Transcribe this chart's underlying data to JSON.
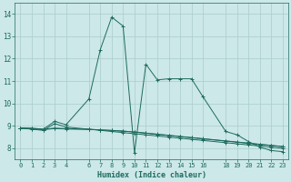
{
  "xlabel": "Humidex (Indice chaleur)",
  "background_color": "#cce8e8",
  "grid_color": "#aacccc",
  "line_color": "#1e6b5e",
  "xlim": [
    -0.5,
    23.5
  ],
  "ylim": [
    7.5,
    14.5
  ],
  "xticks": [
    0,
    1,
    2,
    3,
    4,
    6,
    7,
    8,
    9,
    10,
    11,
    12,
    13,
    14,
    15,
    16,
    18,
    19,
    20,
    21,
    22,
    23
  ],
  "yticks": [
    8,
    9,
    10,
    11,
    12,
    13,
    14
  ],
  "series": [
    {
      "x": [
        0,
        1,
        2,
        3,
        4,
        6,
        7,
        8,
        9,
        10,
        11,
        12,
        13,
        14,
        15,
        16,
        18,
        19,
        20,
        21,
        22,
        23
      ],
      "y": [
        8.9,
        8.9,
        8.85,
        9.2,
        9.05,
        10.2,
        12.4,
        13.85,
        13.45,
        7.8,
        11.75,
        11.05,
        11.1,
        11.1,
        11.1,
        10.3,
        8.75,
        8.6,
        8.3,
        8.05,
        7.9,
        7.85
      ]
    },
    {
      "x": [
        0,
        1,
        2,
        3,
        4,
        6,
        7,
        8,
        9,
        10,
        11,
        12,
        13,
        14,
        15,
        16,
        18,
        19,
        20,
        21,
        22,
        23
      ],
      "y": [
        8.9,
        8.88,
        8.85,
        8.9,
        8.88,
        8.85,
        8.82,
        8.79,
        8.76,
        8.73,
        8.68,
        8.63,
        8.58,
        8.53,
        8.48,
        8.43,
        8.33,
        8.28,
        8.23,
        8.18,
        8.13,
        8.08
      ]
    },
    {
      "x": [
        0,
        1,
        2,
        3,
        4,
        6,
        7,
        8,
        9,
        10,
        11,
        12,
        13,
        14,
        15,
        16,
        18,
        19,
        20,
        21,
        22,
        23
      ],
      "y": [
        8.9,
        8.87,
        8.83,
        8.88,
        8.86,
        8.84,
        8.82,
        8.8,
        8.77,
        8.72,
        8.67,
        8.62,
        8.57,
        8.52,
        8.47,
        8.42,
        8.32,
        8.27,
        8.22,
        8.17,
        8.12,
        8.07
      ]
    },
    {
      "x": [
        0,
        1,
        2,
        3,
        4,
        6,
        7,
        8,
        9,
        10,
        11,
        12,
        13,
        14,
        15,
        16,
        18,
        19,
        20,
        21,
        22,
        23
      ],
      "y": [
        8.9,
        8.85,
        8.8,
        9.1,
        8.95,
        8.85,
        8.8,
        8.75,
        8.7,
        8.65,
        8.6,
        8.55,
        8.5,
        8.45,
        8.4,
        8.35,
        8.25,
        8.2,
        8.15,
        8.1,
        8.05,
        8.0
      ]
    }
  ]
}
